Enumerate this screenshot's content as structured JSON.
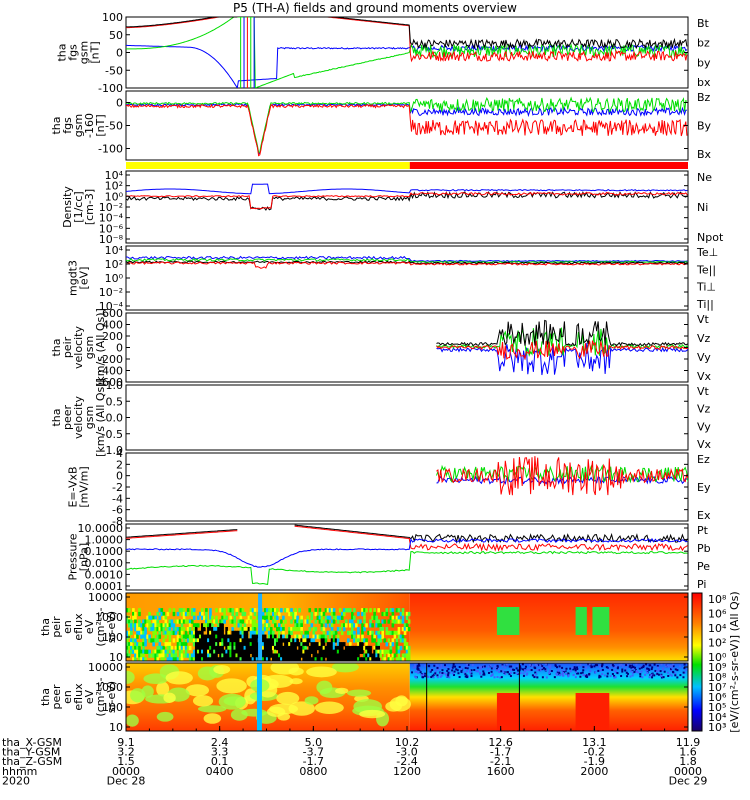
{
  "title": "P5 (TH-A) fields and ground moments overview",
  "colors": {
    "black": "#000000",
    "red": "#ff0000",
    "green": "#00dd00",
    "blue": "#0000ff",
    "yellow": "#ffff00"
  },
  "chart_data": [
    {
      "type": "line",
      "ylabel": [
        "tha",
        "fgs",
        "gsm",
        "[nT]"
      ],
      "ylim": [
        -100,
        100
      ],
      "ticks": [
        "100",
        "50",
        "0",
        "-50",
        "-100"
      ],
      "tick_values": [
        100,
        50,
        0,
        -50,
        -100
      ],
      "legend": [
        {
          "label": "Bt",
          "color": "#000000"
        },
        {
          "label": "bz",
          "color": "#ff0000"
        },
        {
          "label": "by",
          "color": "#00dd00"
        },
        {
          "label": "bx",
          "color": "#0000ff"
        }
      ]
    },
    {
      "type": "line",
      "ylabel": [
        "tha",
        "fgs",
        "gsm",
        "-160",
        "[nT]"
      ],
      "ylim": [
        -125,
        25
      ],
      "ticks": [
        "0",
        "-50",
        "-100"
      ],
      "tick_values": [
        0,
        -50,
        -100
      ],
      "legend": [
        {
          "label": "Bz",
          "color": "#ff0000"
        },
        {
          "label": "By",
          "color": "#00dd00"
        },
        {
          "label": "Bx",
          "color": "#0000ff"
        }
      ]
    },
    {
      "type": "line",
      "ylabel": [
        "Density",
        "[1/cc]",
        "[cm-3]"
      ],
      "scale": "log",
      "ticks": [
        "10⁴",
        "10²",
        "10⁰",
        "10⁻²",
        "10⁻⁴",
        "10⁻⁶",
        "10⁻⁸"
      ],
      "legend": [
        {
          "label": "Ne",
          "color": "#ff0000"
        },
        {
          "label": "Ni",
          "color": "#000000"
        },
        {
          "label": "Npot",
          "color": "#0000ff"
        }
      ]
    },
    {
      "type": "line",
      "ylabel": [
        "mgdt3",
        "[eV]"
      ],
      "scale": "log",
      "ticks": [
        "10⁴",
        "10²",
        "10⁰",
        "10⁻²",
        "10⁻⁴"
      ],
      "legend": [
        {
          "label": "Te⊥",
          "color": "#ff0000"
        },
        {
          "label": "Te||",
          "color": "#000000"
        },
        {
          "label": "Ti⊥",
          "color": "#00dd00"
        },
        {
          "label": "Ti||",
          "color": "#00dd00"
        }
      ]
    },
    {
      "type": "line",
      "ylabel": [
        "tha",
        "peir",
        "velocity",
        "gsm",
        "[km/s (All Qs)]"
      ],
      "ylim": [
        -600,
        600
      ],
      "ticks": [
        "600",
        "400",
        "200",
        "0",
        "-200",
        "-400",
        "-600"
      ],
      "tick_values": [
        600,
        400,
        200,
        0,
        -200,
        -400,
        -600
      ],
      "legend": [
        {
          "label": "Vt",
          "color": "#000000"
        },
        {
          "label": "Vz",
          "color": "#ff0000"
        },
        {
          "label": "Vy",
          "color": "#00dd00"
        },
        {
          "label": "Vx",
          "color": "#0000ff"
        }
      ]
    },
    {
      "type": "line",
      "ylabel": [
        "tha",
        "peer",
        "velocity",
        "gsm",
        "[km/s (All Qs)]"
      ],
      "ylim": [
        -1.0,
        1.0
      ],
      "ticks": [
        "1.0",
        "0.5",
        "0.0",
        "-0.5",
        "-1.0"
      ],
      "tick_values": [
        1.0,
        0.5,
        0.0,
        -0.5,
        -1.0
      ],
      "legend": [
        {
          "label": "Vt",
          "color": "#000000"
        },
        {
          "label": "Vz",
          "color": "#ff0000"
        },
        {
          "label": "Vy",
          "color": "#00dd00"
        },
        {
          "label": "Vx",
          "color": "#0000ff"
        }
      ]
    },
    {
      "type": "line",
      "ylabel": [
        "E=-VxB",
        "[mV/m]"
      ],
      "ylim": [
        -8,
        4
      ],
      "ticks": [
        "4",
        "2",
        "0",
        "-2",
        "-4",
        "-6",
        "-8"
      ],
      "tick_values": [
        4,
        2,
        0,
        -2,
        -4,
        -6,
        -8
      ],
      "legend": [
        {
          "label": "Ez",
          "color": "#ff0000"
        },
        {
          "label": "Ey",
          "color": "#00dd00"
        },
        {
          "label": "Ex",
          "color": "#0000ff"
        }
      ]
    },
    {
      "type": "line",
      "ylabel": [
        "Pressure",
        "[nPa]"
      ],
      "scale": "log",
      "ticks": [
        "10.0000",
        "1.0000",
        "0.1000",
        "0.0100",
        "0.0010",
        "0.0001"
      ],
      "legend": [
        {
          "label": "Pt",
          "color": "#000000"
        },
        {
          "label": "Pb",
          "color": "#ff0000"
        },
        {
          "label": "Pe",
          "color": "#00dd00"
        },
        {
          "label": "Pi",
          "color": "#0000ff"
        }
      ]
    },
    {
      "type": "heatmap",
      "ylabel": [
        "tha",
        "peir",
        "en",
        "eflux",
        "eV",
        "(cm²-s-",
        "sr-eV)"
      ],
      "ticks": [
        "10000",
        "1000",
        "100",
        "10"
      ]
    },
    {
      "type": "heatmap",
      "ylabel": [
        "tha",
        "peer",
        "en",
        "eflux",
        "eV",
        "(cm²-s-",
        "sr-eV)"
      ],
      "ticks": [
        "10000",
        "1000",
        "100",
        "10"
      ]
    }
  ],
  "colorbar": {
    "label": "[eV/(cm²-s-sr-eV)] (All Qs)",
    "ticks_top": [
      "10⁸",
      "10⁶",
      "10⁴",
      "10²",
      "10⁰"
    ],
    "ticks_bottom": [
      "10⁹",
      "10⁸",
      "10⁷",
      "10⁶",
      "10⁵",
      "10⁴",
      "10³"
    ]
  },
  "xaxis": {
    "row_labels": [
      "tha_X-GSM",
      "tha_Y-GSM",
      "tha_Z-GSM",
      "hhmm",
      "2020"
    ],
    "columns": [
      {
        "vals": [
          "9.1",
          "3.2",
          "1.5",
          "0000",
          "Dec 28"
        ]
      },
      {
        "vals": [
          "2.4",
          "3.3",
          "0.1",
          "0400",
          ""
        ]
      },
      {
        "vals": [
          "5.0",
          "-3.7",
          "-1.7",
          "0800",
          ""
        ]
      },
      {
        "vals": [
          "10.2",
          "-3.0",
          "-2.4",
          "1200",
          ""
        ]
      },
      {
        "vals": [
          "12.6",
          "-1.7",
          "-2.1",
          "1600",
          ""
        ]
      },
      {
        "vals": [
          "13.1",
          "-0.2",
          "-1.9",
          "2000",
          ""
        ]
      },
      {
        "vals": [
          "11.9",
          "1.6",
          "1.8",
          "0000",
          "Dec 29"
        ]
      }
    ]
  }
}
